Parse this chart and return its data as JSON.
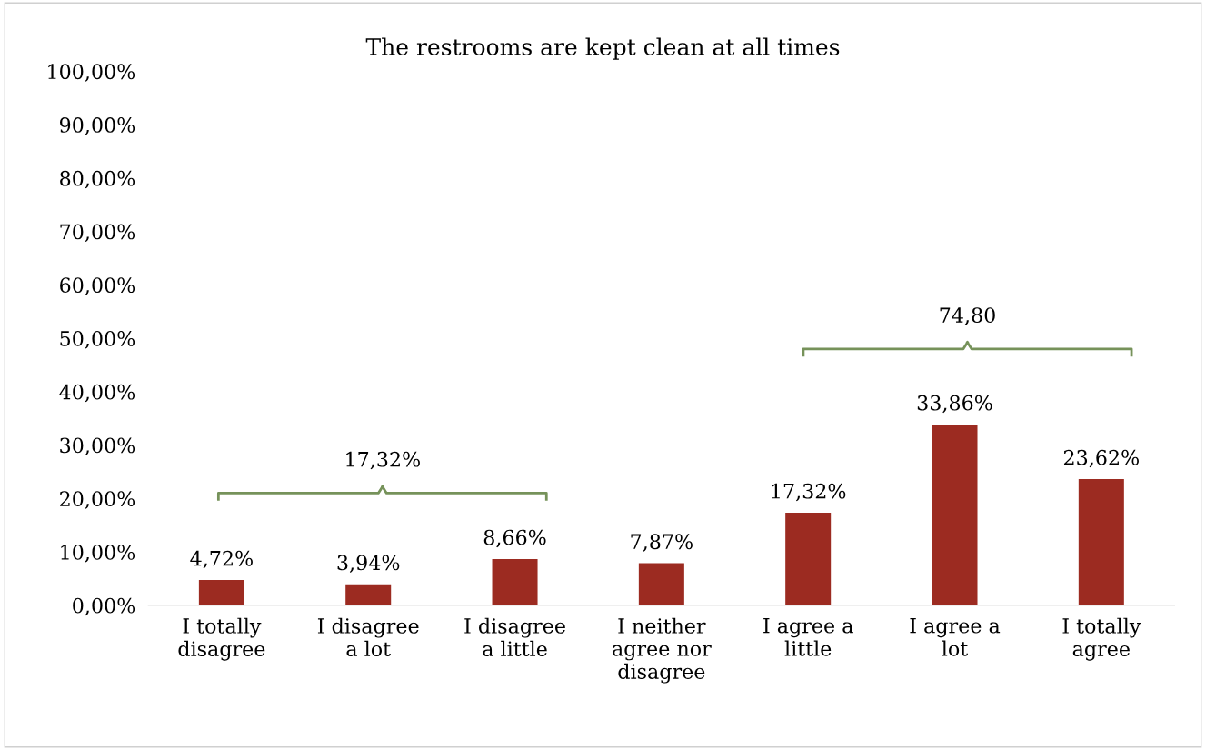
{
  "chart_data": {
    "type": "bar",
    "title": "The restrooms are kept clean at all times",
    "categories": [
      "I totally disagree",
      "I disagree a lot",
      "I disagree a little",
      "I neither agree nor disagree",
      "I agree a little",
      "I agree a lot",
      "I totally agree"
    ],
    "values": [
      4.72,
      3.94,
      8.66,
      7.87,
      17.32,
      33.86,
      23.62
    ],
    "value_labels": [
      "4,72%",
      "3,94%",
      "8,66%",
      "7,87%",
      "17,32%",
      "33,86%",
      "23,62%"
    ],
    "color": "#9c2b21",
    "ylim": [
      0,
      100
    ],
    "yticks": [
      {
        "value": 0,
        "label": "0,00%"
      },
      {
        "value": 10,
        "label": "10,00%"
      },
      {
        "value": 20,
        "label": "20,00%"
      },
      {
        "value": 30,
        "label": "30,00%"
      },
      {
        "value": 40,
        "label": "40,00%"
      },
      {
        "value": 50,
        "label": "50,00%"
      },
      {
        "value": 60,
        "label": "60,00%"
      },
      {
        "value": 70,
        "label": "70,00%"
      },
      {
        "value": 80,
        "label": "80,00%"
      },
      {
        "value": 90,
        "label": "90,00%"
      },
      {
        "value": 100,
        "label": "100,00%"
      }
    ],
    "annotations": [
      "17,32%",
      "74,80"
    ],
    "grid": false,
    "legend": false
  }
}
